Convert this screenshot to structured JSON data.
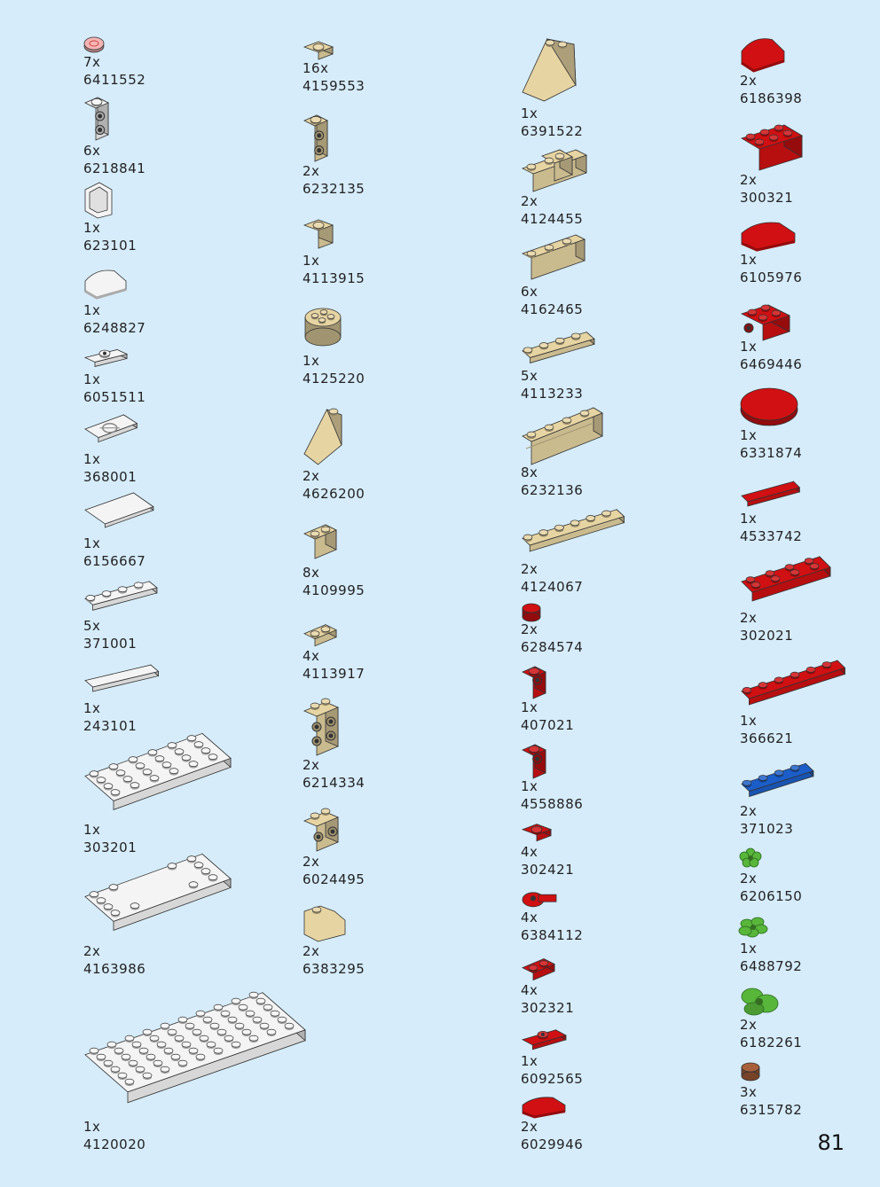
{
  "page_number": "81",
  "colors": {
    "background": "#d6ecfa",
    "white": "#f4f4f4",
    "tan": "#e6d4a2",
    "red": "#d01012",
    "blue": "#1b5ec9",
    "green": "#58b63b",
    "brown": "#a8603a",
    "pink": "#f5b5b5",
    "dark": "#222222"
  },
  "columns": [
    {
      "parts": [
        {
          "quantity": "7x",
          "id": "6411552",
          "color": "pink",
          "shape": "round-tile"
        },
        {
          "quantity": "6x",
          "id": "6218841",
          "color": "white",
          "shape": "brick-side-studs"
        },
        {
          "quantity": "1x",
          "id": "623101",
          "color": "white",
          "shape": "window-frame"
        },
        {
          "quantity": "1x",
          "id": "6248827",
          "color": "white",
          "shape": "curved-slope"
        },
        {
          "quantity": "1x",
          "id": "6051511",
          "color": "white",
          "shape": "jumper-plate"
        },
        {
          "quantity": "1x",
          "id": "368001",
          "color": "white",
          "shape": "grille-tile"
        },
        {
          "quantity": "1x",
          "id": "6156667",
          "color": "white",
          "shape": "flat-tile-large"
        },
        {
          "quantity": "5x",
          "id": "371001",
          "color": "white",
          "shape": "plate-1x4"
        },
        {
          "quantity": "1x",
          "id": "243101",
          "color": "white",
          "shape": "tile-1x4"
        },
        {
          "quantity": "1x",
          "id": "303201",
          "color": "white",
          "shape": "plate-4x6"
        },
        {
          "quantity": "2x",
          "id": "4163986",
          "color": "white",
          "shape": "plate-open-center"
        },
        {
          "quantity": "1x",
          "id": "4120020",
          "color": "white",
          "shape": "plate-6x10"
        }
      ]
    },
    {
      "parts": [
        {
          "quantity": "16x",
          "id": "4159553",
          "color": "tan",
          "shape": "plate-1x1"
        },
        {
          "quantity": "2x",
          "id": "6232135",
          "color": "tan",
          "shape": "brick-side-studs"
        },
        {
          "quantity": "1x",
          "id": "4113915",
          "color": "tan",
          "shape": "brick-1x1"
        },
        {
          "quantity": "1x",
          "id": "4125220",
          "color": "tan",
          "shape": "round-brick-2x2"
        },
        {
          "quantity": "2x",
          "id": "4626200",
          "color": "tan",
          "shape": "slope-tall"
        },
        {
          "quantity": "8x",
          "id": "4109995",
          "color": "tan",
          "shape": "brick-1x2"
        },
        {
          "quantity": "4x",
          "id": "4113917",
          "color": "tan",
          "shape": "plate-1x2"
        },
        {
          "quantity": "2x",
          "id": "6214334",
          "color": "tan",
          "shape": "brick-side-studs-4"
        },
        {
          "quantity": "2x",
          "id": "6024495",
          "color": "tan",
          "shape": "brick-side-studs-2"
        },
        {
          "quantity": "2x",
          "id": "6383295",
          "color": "tan",
          "shape": "slope-small"
        }
      ]
    },
    {
      "parts": [
        {
          "quantity": "1x",
          "id": "6391522",
          "color": "tan",
          "shape": "slope-large"
        },
        {
          "quantity": "2x",
          "id": "4124455",
          "color": "tan",
          "shape": "corner-brick"
        },
        {
          "quantity": "6x",
          "id": "4162465",
          "color": "tan",
          "shape": "brick-1x3"
        },
        {
          "quantity": "5x",
          "id": "4113233",
          "color": "tan",
          "shape": "plate-1x4"
        },
        {
          "quantity": "8x",
          "id": "6232136",
          "color": "tan",
          "shape": "masonry-brick"
        },
        {
          "quantity": "2x",
          "id": "4124067",
          "color": "tan",
          "shape": "plate-1x6"
        },
        {
          "quantity": "2x",
          "id": "6284574",
          "color": "red",
          "shape": "round-plate-1x1"
        },
        {
          "quantity": "1x",
          "id": "407021",
          "color": "red",
          "shape": "brick-side-stud"
        },
        {
          "quantity": "1x",
          "id": "4558886",
          "color": "red",
          "shape": "brick-side-stud"
        },
        {
          "quantity": "4x",
          "id": "302421",
          "color": "red",
          "shape": "plate-1x1-small"
        },
        {
          "quantity": "4x",
          "id": "6384112",
          "color": "red",
          "shape": "clip-plate"
        },
        {
          "quantity": "4x",
          "id": "302321",
          "color": "red",
          "shape": "plate-1x2"
        },
        {
          "quantity": "1x",
          "id": "6092565",
          "color": "red",
          "shape": "jumper-plate"
        },
        {
          "quantity": "2x",
          "id": "6029946",
          "color": "red",
          "shape": "curved-slope"
        }
      ]
    },
    {
      "parts": [
        {
          "quantity": "2x",
          "id": "6186398",
          "color": "red",
          "shape": "curved-slope"
        },
        {
          "quantity": "2x",
          "id": "300321",
          "color": "red",
          "shape": "brick-2x3"
        },
        {
          "quantity": "1x",
          "id": "6105976",
          "color": "red",
          "shape": "curved-tile"
        },
        {
          "quantity": "1x",
          "id": "6469446",
          "color": "red",
          "shape": "brick-2x2-side"
        },
        {
          "quantity": "1x",
          "id": "6331874",
          "color": "red",
          "shape": "round-tile-large"
        },
        {
          "quantity": "1x",
          "id": "4533742",
          "color": "red",
          "shape": "tile-1x4"
        },
        {
          "quantity": "2x",
          "id": "302021",
          "color": "red",
          "shape": "plate-2x4"
        },
        {
          "quantity": "1x",
          "id": "366621",
          "color": "red",
          "shape": "plate-1x6"
        },
        {
          "quantity": "2x",
          "id": "371023",
          "color": "blue",
          "shape": "plate-1x4"
        },
        {
          "quantity": "2x",
          "id": "6206150",
          "color": "green",
          "shape": "flower-small"
        },
        {
          "quantity": "1x",
          "id": "6488792",
          "color": "green",
          "shape": "leaf-cluster"
        },
        {
          "quantity": "2x",
          "id": "6182261",
          "color": "green",
          "shape": "plant-leaves"
        },
        {
          "quantity": "3x",
          "id": "6315782",
          "color": "brown",
          "shape": "round-brick-1x1"
        }
      ]
    }
  ]
}
